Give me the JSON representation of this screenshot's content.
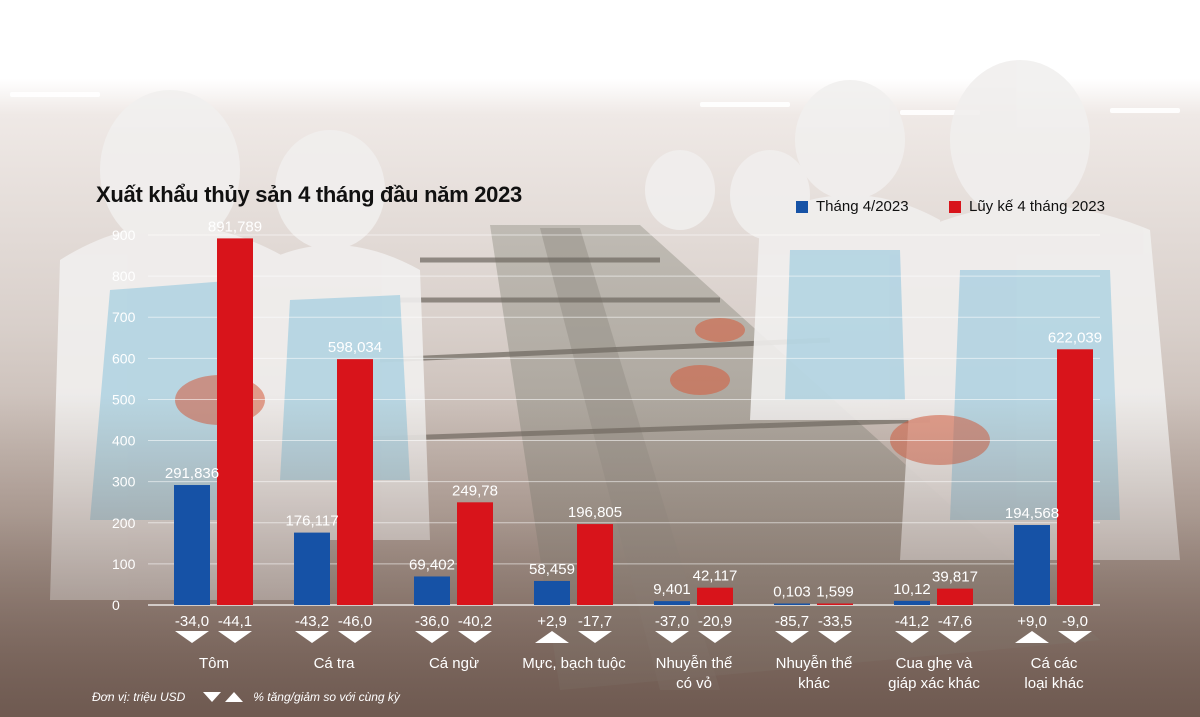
{
  "chart_data": {
    "type": "bar",
    "title": "Xuất khẩu thủy sản 4 tháng đầu năm 2023",
    "categories": [
      "Tôm",
      "Cá tra",
      "Cá ngừ",
      "Mực, bạch tuộc",
      "Nhuyễn thể có vỏ",
      "Nhuyễn thể khác",
      "Cua ghẹ và giáp xác khác",
      "Cá các loại khác"
    ],
    "category_lines": [
      [
        "Tôm"
      ],
      [
        "Cá tra"
      ],
      [
        "Cá ngừ"
      ],
      [
        "Mực, bạch tuộc"
      ],
      [
        "Nhuyễn thể",
        "có vỏ"
      ],
      [
        "Nhuyễn thể",
        "khác"
      ],
      [
        "Cua ghẹ và",
        "giáp xác khác"
      ],
      [
        "Cá các",
        "loại khác"
      ]
    ],
    "series": [
      {
        "name": "Tháng 4/2023",
        "color": "#1652a6",
        "values": [
          291.836,
          176.117,
          69.402,
          58.459,
          9.401,
          0.103,
          10.12,
          194.568
        ],
        "labels": [
          "291,836",
          "176,117",
          "69,402",
          "58,459",
          "9,401",
          "0,103",
          "10,12",
          "194,568"
        ],
        "changes": [
          "-34,0",
          "-43,2",
          "-36,0",
          "+2,9",
          "-37,0",
          "-85,7",
          "-41,2",
          "+9,0"
        ]
      },
      {
        "name": "Lũy kế 4 tháng 2023",
        "color": "#d8141b",
        "values": [
          891.789,
          598.034,
          249.78,
          196.805,
          42.117,
          1.599,
          39.817,
          622.039
        ],
        "labels": [
          "891,789",
          "598,034",
          "249,78",
          "196,805",
          "42,117",
          "1,599",
          "39,817",
          "622,039"
        ],
        "changes": [
          "-44,1",
          "-46,0",
          "-40,2",
          "-17,7",
          "-20,9",
          "-33,5",
          "-47,6",
          "-9,0"
        ]
      }
    ],
    "yticks": [
      0,
      100,
      200,
      300,
      400,
      500,
      600,
      700,
      800,
      900
    ],
    "ylim": [
      0,
      950
    ],
    "footnote_unit": "Đơn vị: triệu USD",
    "footnote_change": "% tăng/giảm so với cùng kỳ"
  }
}
